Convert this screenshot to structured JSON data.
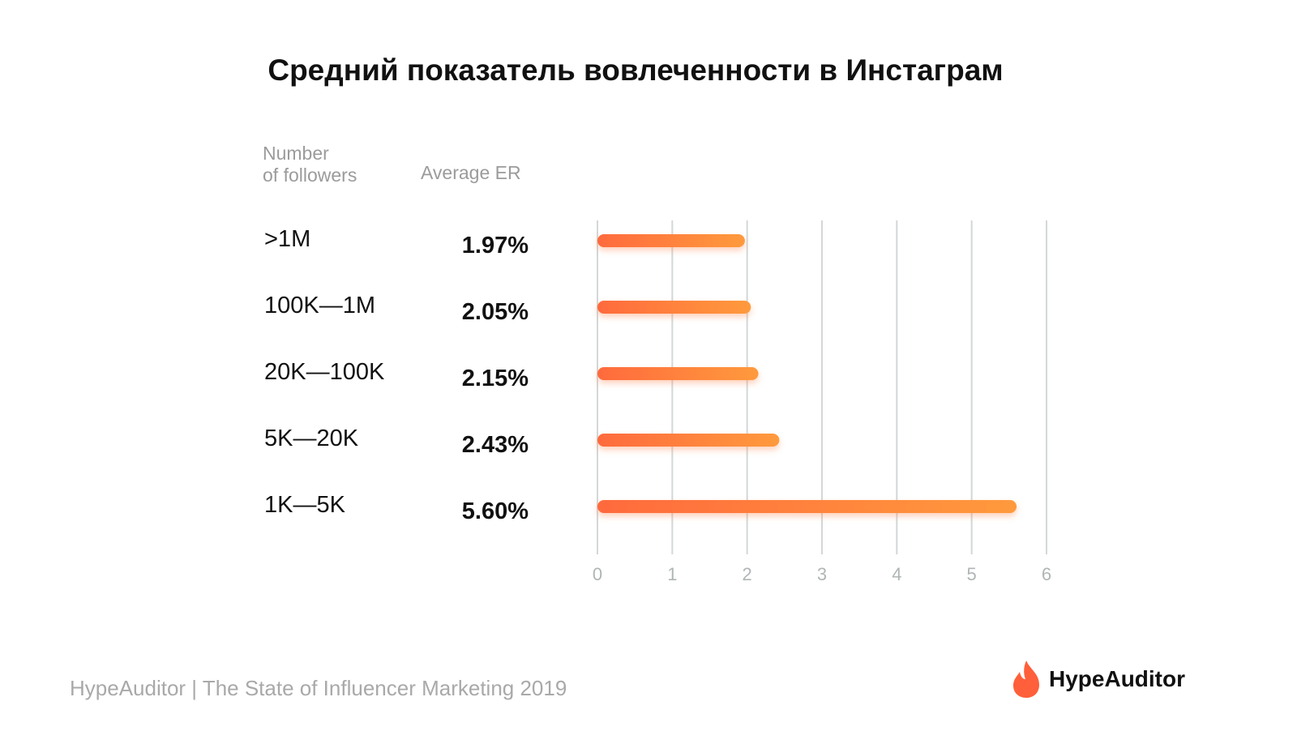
{
  "title": "Средний показатель вовлеченности в Инстаграм",
  "columns": {
    "followers_line1": "Number",
    "followers_line2": "of followers",
    "er": "Average ER"
  },
  "chart_data": {
    "type": "bar",
    "orientation": "horizontal",
    "categories": [
      ">1M",
      "100K—1M",
      "20K—100K",
      "5K—20K",
      "1K—5K"
    ],
    "values": [
      1.97,
      2.05,
      2.15,
      2.43,
      5.6
    ],
    "value_labels": [
      "1.97%",
      "2.05%",
      "2.15%",
      "2.43%",
      "5.60%"
    ],
    "xlim": [
      0,
      6
    ],
    "xticks": [
      "0",
      "1",
      "2",
      "3",
      "4",
      "5",
      "6"
    ],
    "grid": true,
    "bar_color_start": "#ff6a3d",
    "bar_color_end": "#ff9a3c",
    "grid_color": "#d3d7d8",
    "tick_color": "#b0b5b6"
  },
  "footer": "HypeAuditor | The State of Influencer Marketing 2019",
  "logo": {
    "icon": "flame-icon",
    "text": "HypeAuditor",
    "color": "#ff5f3a"
  }
}
